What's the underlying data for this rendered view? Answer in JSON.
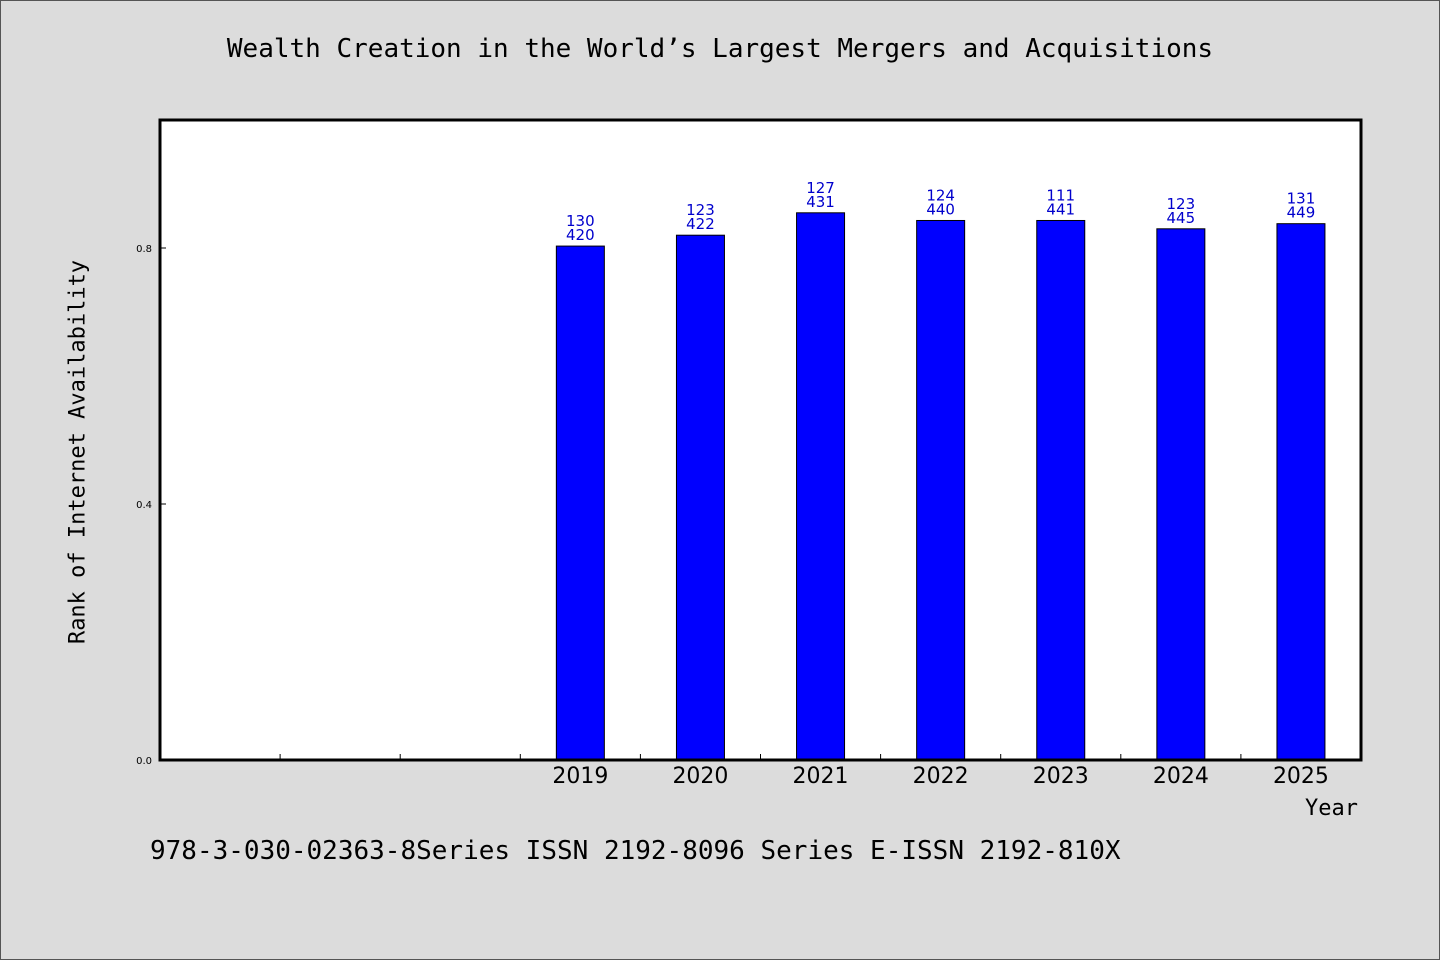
{
  "chart_data": {
    "type": "bar",
    "title": "Wealth Creation in the World’s Largest Mergers and Acquisitions",
    "xlabel": "Year",
    "ylabel": "Rank of Internet Availability",
    "categories": [
      "",
      "",
      "",
      "2019",
      "2020",
      "2021",
      "2022",
      "2023",
      "2024",
      "2025"
    ],
    "values": [
      null,
      null,
      null,
      0.803,
      0.82,
      0.855,
      0.843,
      0.843,
      0.83,
      0.838
    ],
    "data_labels": [
      null,
      null,
      null,
      [
        "130",
        "420"
      ],
      [
        "123",
        "422"
      ],
      [
        "127",
        "431"
      ],
      [
        "124",
        "440"
      ],
      [
        "111",
        "441"
      ],
      [
        "123",
        "445"
      ],
      [
        "131",
        "449"
      ]
    ],
    "yticks": [
      "0.0",
      "0.4",
      "0.8"
    ],
    "ylim": [
      0,
      1.0
    ],
    "grid": false,
    "legend": "none",
    "bar_color": "#0000ff",
    "label_color": "#0000cc"
  },
  "footer": "978-3-030-02363-8Series ISSN 2192-8096 Series E-ISSN 2192-810X"
}
